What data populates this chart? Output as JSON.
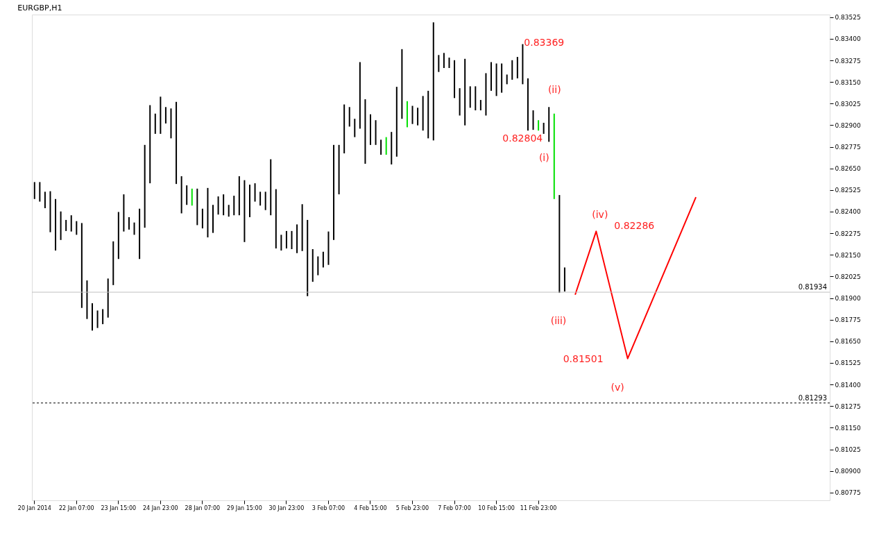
{
  "chart_data": {
    "type": "bar",
    "title": "EURGBP,H1",
    "categories": [
      "20 Jan 2014",
      null,
      null,
      null,
      null,
      null,
      null,
      null,
      "22 Jan 07:00",
      null,
      null,
      null,
      null,
      null,
      null,
      null,
      "23 Jan 15:00",
      null,
      null,
      null,
      null,
      null,
      null,
      null,
      "24 Jan 23:00",
      null,
      null,
      null,
      null,
      null,
      null,
      null,
      "28 Jan 07:00",
      null,
      null,
      null,
      null,
      null,
      null,
      null,
      "29 Jan 15:00",
      null,
      null,
      null,
      null,
      null,
      null,
      null,
      "30 Jan 23:00",
      null,
      null,
      null,
      null,
      null,
      null,
      null,
      "3 Feb 07:00",
      null,
      null,
      null,
      null,
      null,
      null,
      null,
      "4 Feb 15:00",
      null,
      null,
      null,
      null,
      null,
      null,
      null,
      "5 Feb 23:00",
      null,
      null,
      null,
      null,
      null,
      null,
      null,
      "7 Feb 07:00",
      null,
      null,
      null,
      null,
      null,
      null,
      null,
      "10 Feb 15:00",
      null,
      null,
      null,
      null,
      null,
      null,
      null,
      "11 Feb 23:00",
      null,
      null,
      null,
      null,
      null,
      null,
      null,
      null,
      null,
      null,
      null,
      null,
      null,
      null,
      null,
      null,
      null,
      null,
      null,
      null,
      null,
      null,
      null,
      null,
      null,
      null,
      null,
      null,
      null,
      null,
      null,
      null,
      null,
      null,
      null,
      null,
      null,
      null,
      null,
      null,
      null,
      null,
      null,
      null,
      null,
      null,
      null,
      null,
      null,
      null,
      null,
      null,
      null,
      null,
      null
    ],
    "ylim": [
      0.8073,
      0.8354
    ],
    "yticks": [
      0.80775,
      {
        "value": 0.809,
        "label": "0.80900"
      },
      0.81025,
      {
        "value": 0.8115,
        "label": "0.81150"
      },
      0.81275,
      {
        "value": 0.814,
        "label": "0.81400"
      },
      0.81525,
      {
        "value": 0.8165,
        "label": "0.81650"
      },
      0.81775,
      {
        "value": 0.819,
        "label": "0.81900"
      },
      0.82025,
      {
        "value": 0.8215,
        "label": "0.82150"
      },
      0.82275,
      {
        "value": 0.824,
        "label": "0.82400"
      },
      0.82525,
      {
        "value": 0.8265,
        "label": "0.82650"
      },
      0.82775,
      {
        "value": 0.829,
        "label": "0.82900"
      },
      0.83025,
      {
        "value": 0.8315,
        "label": "0.83150"
      },
      0.83275,
      {
        "value": 0.834,
        "label": "0.83400"
      },
      0.83525
    ],
    "series": [
      {
        "color": "#000000",
        "base": [
          0.82473,
          0.82458,
          0.8242,
          0.82281,
          0.82175,
          0.82236,
          0.82288,
          0.82285,
          0.82266,
          0.81843,
          0.81779,
          0.81712,
          0.81727,
          0.81749,
          0.81787,
          0.81975,
          0.82126,
          0.82285,
          0.82296,
          0.82266,
          0.82126,
          0.82307,
          0.82564,
          0.8285,
          0.8285,
          0.8291,
          0.82824,
          0.8256,
          0.8239,
          0.82439,
          0.82435,
          0.82322,
          0.82303,
          0.82251,
          0.82277,
          0.82383,
          0.82379,
          0.82371,
          0.82379,
          0.82379,
          0.82224,
          0.82368,
          0.82458,
          0.82435,
          0.82409,
          0.82379,
          0.82187,
          0.82175,
          0.82187,
          0.82183,
          0.8216,
          0.82172,
          0.81911,
          0.81994,
          0.82032,
          0.82077,
          0.82092,
          0.82236,
          0.825,
          0.82737,
          0.82892,
          0.82831,
          0.8288,
          0.82677,
          0.82786,
          0.82786,
          0.82729,
          0.82729,
          0.82673,
          0.82718,
          0.82937,
          0.82888,
          0.82907,
          0.82899,
          0.82869,
          0.82824,
          0.82812,
          0.83208,
          0.83231,
          0.83231,
          0.83057,
          0.82956,
          0.82899,
          0.83001,
          0.82986,
          0.82986,
          0.82956,
          0.83099,
          0.83069,
          0.83088,
          0.83137,
          0.83163,
          0.83171,
          0.83137,
          0.82869,
          0.82873,
          0.82869,
          0.8285,
          0.82804,
          0.82473,
          0.8193,
          0.81938,
          null,
          null,
          null,
          null,
          null,
          null,
          null,
          null,
          null,
          null,
          null,
          null,
          null,
          null,
          null,
          null,
          null,
          null,
          null,
          null,
          null,
          null,
          null,
          null,
          null,
          null,
          null,
          null,
          null,
          null,
          null,
          null,
          null,
          null,
          null,
          null,
          null,
          null,
          null,
          null,
          null,
          null,
          null,
          null,
          null,
          null,
          null,
          null,
          null,
          null
        ],
        "values": [
          0.00098,
          0.00113,
          0.00095,
          0.00237,
          0.00298,
          0.00165,
          0.00064,
          0.00094,
          0.00079,
          0.00491,
          0.00223,
          0.00158,
          0.00101,
          0.00087,
          0.00226,
          0.00253,
          0.00272,
          0.00215,
          0.00072,
          0.00071,
          0.00291,
          0.00479,
          0.00452,
          0.00117,
          0.00215,
          0.00095,
          0.00173,
          0.00475,
          0.00215,
          0.00113,
          0.00098,
          0.00211,
          0.00114,
          0.00286,
          0.00162,
          0.00105,
          0.00121,
          0.00068,
          0.00113,
          0.00226,
          0.00358,
          0.00188,
          0.00106,
          0.0008,
          0.00106,
          0.00324,
          0.00343,
          0.00091,
          0.00101,
          0.00105,
          0.00166,
          0.00271,
          0.00441,
          0.00189,
          0.00109,
          0.00091,
          0.00193,
          0.0055,
          0.00286,
          0.00283,
          0.00113,
          0.00106,
          0.00385,
          0.00373,
          0.00177,
          0.00143,
          0.00087,
          0.00102,
          0.00188,
          0.00404,
          0.00403,
          0.00151,
          0.00105,
          0.00102,
          0.002,
          0.00275,
          0.00683,
          0.00098,
          0.00087,
          0.0006,
          0.00219,
          0.00158,
          0.00385,
          0.00124,
          0.00139,
          0.0006,
          0.00245,
          0.00166,
          0.00188,
          0.00169,
          0.00056,
          0.00113,
          0.00124,
          0.00232,
          0.00302,
          0.00113,
          0.0006,
          0.00064,
          0.00201,
          0.00494,
          0.00566,
          0.00139,
          null,
          null,
          null,
          null,
          null,
          null,
          null,
          null,
          null,
          null,
          null,
          null,
          null,
          null,
          null,
          null,
          null,
          null,
          null,
          null,
          null,
          null,
          null,
          null,
          null,
          null,
          null,
          null,
          null,
          null,
          null,
          null,
          null,
          null,
          null,
          null,
          null,
          null,
          null,
          null,
          null,
          null,
          null,
          null,
          null,
          null,
          null,
          null,
          null,
          null
        ],
        "colors": [
          "#000000",
          "#000000",
          "#000000",
          "#000000",
          "#000000",
          "#000000",
          "#000000",
          "#000000",
          "#000000",
          "#000000",
          "#000000",
          "#000000",
          "#000000",
          "#000000",
          "#000000",
          "#000000",
          "#000000",
          "#000000",
          "#000000",
          "#000000",
          "#000000",
          "#000000",
          "#000000",
          "#000000",
          "#000000",
          "#000000",
          "#000000",
          "#000000",
          "#000000",
          "#000000",
          "#00e000",
          "#000000",
          "#000000",
          "#000000",
          "#000000",
          "#000000",
          "#000000",
          "#000000",
          "#000000",
          "#000000",
          "#000000",
          "#000000",
          "#000000",
          "#000000",
          "#000000",
          "#000000",
          "#000000",
          "#000000",
          "#000000",
          "#000000",
          "#000000",
          "#000000",
          "#000000",
          "#000000",
          "#000000",
          "#000000",
          "#000000",
          "#000000",
          "#000000",
          "#000000",
          "#000000",
          "#000000",
          "#000000",
          "#000000",
          "#000000",
          "#000000",
          "#000000",
          "#00e000",
          "#000000",
          "#000000",
          "#000000",
          "#00e000",
          "#000000",
          "#000000",
          "#000000",
          "#000000",
          "#000000",
          "#000000",
          "#000000",
          "#000000",
          "#000000",
          "#000000",
          "#000000",
          "#000000",
          "#000000",
          "#000000",
          "#000000",
          "#000000",
          "#000000",
          "#000000",
          "#000000",
          "#000000",
          "#000000",
          "#000000",
          "#000000",
          "#000000",
          "#00e000",
          "#000000",
          "#000000",
          "#00e000",
          "#000000",
          "#000000",
          null,
          null,
          null,
          null,
          null,
          null,
          null,
          null,
          null,
          null,
          null,
          null,
          null,
          null,
          null,
          null,
          null,
          null,
          null,
          null,
          null,
          null,
          null,
          null,
          null,
          null,
          null,
          null,
          null,
          null,
          null,
          null,
          null,
          null,
          null,
          null,
          null,
          null,
          null,
          null,
          null,
          null,
          null,
          null,
          null,
          null,
          null,
          null,
          null,
          null
        ]
      },
      {
        "type": "line",
        "color": "#ff0000",
        "values": [
          null,
          null,
          null,
          null,
          null,
          null,
          null,
          null,
          null,
          null,
          null,
          null,
          null,
          null,
          null,
          null,
          null,
          null,
          null,
          null,
          null,
          null,
          null,
          null,
          null,
          null,
          null,
          null,
          null,
          null,
          null,
          null,
          null,
          null,
          null,
          null,
          null,
          null,
          null,
          null,
          null,
          null,
          null,
          null,
          null,
          null,
          null,
          null,
          null,
          null,
          null,
          null,
          null,
          null,
          null,
          null,
          null,
          null,
          null,
          null,
          null,
          null,
          null,
          null,
          null,
          null,
          null,
          null,
          null,
          null,
          null,
          null,
          null,
          null,
          null,
          null,
          null,
          null,
          null,
          null,
          null,
          null,
          null,
          null,
          null,
          null,
          null,
          null,
          null,
          null,
          null,
          null,
          null,
          null,
          null,
          null,
          null,
          null,
          null,
          null,
          null,
          null,
          null,
          0.81919,
          null,
          null,
          null,
          0.82286,
          null,
          null,
          null,
          null,
          null,
          0.8155,
          null,
          null,
          null,
          null,
          null,
          null,
          null,
          null,
          null,
          null,
          null,
          null,
          0.82484,
          null,
          null,
          null,
          null,
          null,
          null,
          null,
          null,
          null,
          null,
          null,
          null,
          null,
          null,
          null,
          null,
          null,
          null,
          null,
          null,
          null,
          null,
          null,
          null,
          null
        ]
      }
    ],
    "ref_lines": [
      {
        "axis": "y",
        "value": 0.81934,
        "label": "0.81934",
        "color": "#c0c0c0",
        "line_style": "solid"
      },
      {
        "axis": "y",
        "value": 0.81293,
        "label": "0.81293",
        "color": "#000000",
        "line_style": "dashed"
      }
    ],
    "annotations": [
      "0.83369",
      "0.82804",
      "0.82286",
      "0.81501",
      "(i)",
      "(ii)",
      "(iii)",
      "(iv)",
      "(v)"
    ]
  }
}
